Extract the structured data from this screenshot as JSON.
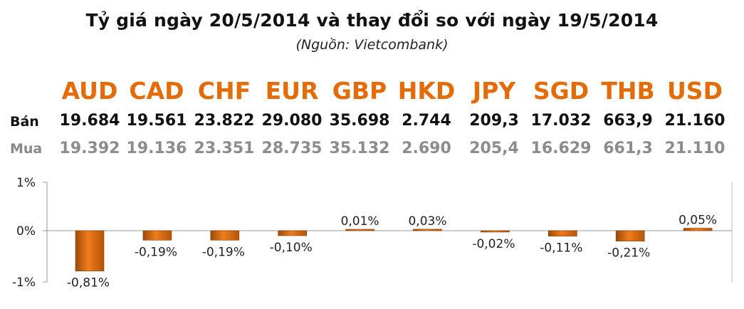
{
  "title": "Tỷ giá ngày 20/5/2014 và thay đổi so với ngày 19/5/2014",
  "subtitle": "(Nguồn: Vietcombank)",
  "row_labels": {
    "sell": "Bán",
    "buy": "Mua"
  },
  "currencies": [
    {
      "code": "AUD",
      "sell": "19.684",
      "buy": "19.392"
    },
    {
      "code": "CAD",
      "sell": "19.561",
      "buy": "19.136"
    },
    {
      "code": "CHF",
      "sell": "23.822",
      "buy": "23.351"
    },
    {
      "code": "EUR",
      "sell": "29.080",
      "buy": "28.735"
    },
    {
      "code": "GBP",
      "sell": "35.698",
      "buy": "35.132"
    },
    {
      "code": "HKD",
      "sell": "2.744",
      "buy": "2.690"
    },
    {
      "code": "JPY",
      "sell": "209,3",
      "buy": "205,4"
    },
    {
      "code": "SGD",
      "sell": "17.032",
      "buy": "16.629"
    },
    {
      "code": "THB",
      "sell": "663,9",
      "buy": "661,3"
    },
    {
      "code": "USD",
      "sell": "21.160",
      "buy": "21.110"
    }
  ],
  "colors": {
    "accent": "#e36c09",
    "bar": "#e36c09",
    "bar_dark": "#8a3d06",
    "muted": "#8c8c8c"
  },
  "chart_data": {
    "type": "bar",
    "categories": [
      "AUD",
      "CAD",
      "CHF",
      "EUR",
      "GBP",
      "HKD",
      "JPY",
      "SGD",
      "THB",
      "USD"
    ],
    "values": [
      -0.81,
      -0.19,
      -0.19,
      -0.1,
      0.01,
      0.03,
      -0.02,
      -0.11,
      -0.21,
      0.05
    ],
    "data_labels": [
      "-0,81%",
      "-0,19%",
      "-0,19%",
      "-0,10%",
      "0,01%",
      "0,03%",
      "-0,02%",
      "-0,11%",
      "-0,21%",
      "0,05%"
    ],
    "y_ticks": [
      "1%",
      "0%",
      "-1%"
    ],
    "ylim": [
      -1,
      1
    ],
    "grid": false,
    "legend": "none"
  }
}
